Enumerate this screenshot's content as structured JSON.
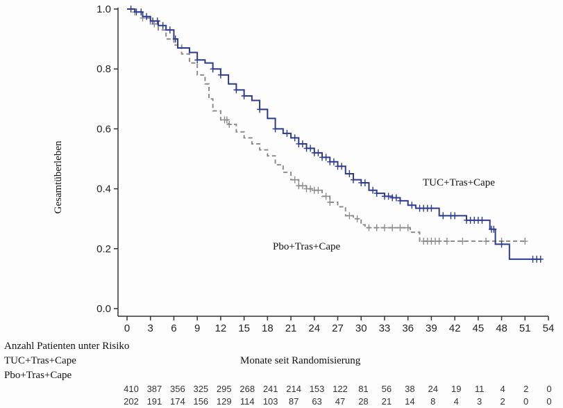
{
  "chart_data": {
    "type": "line",
    "title": "",
    "xlabel": "Monate seit Randomisierung",
    "ylabel": "Gesamtüberleben",
    "xlim": [
      0,
      54
    ],
    "ylim": [
      0,
      1.0
    ],
    "x_ticks": [
      0,
      3,
      6,
      9,
      12,
      15,
      18,
      21,
      24,
      27,
      30,
      33,
      36,
      39,
      42,
      45,
      48,
      51,
      54
    ],
    "y_ticks": [
      0.0,
      0.2,
      0.4,
      0.6,
      0.8,
      1.0
    ],
    "y_tick_labels": [
      "0.0",
      "0.2",
      "0.4",
      "0.6",
      "0.8",
      "1.0"
    ],
    "grid": false,
    "series": [
      {
        "name": "TUC+Tras+Cape",
        "color": "#2b3a8f",
        "style": "solid",
        "label_text": "TUC+Tras+Cape",
        "points": [
          [
            0,
            1.0
          ],
          [
            1,
            0.99
          ],
          [
            2,
            0.975
          ],
          [
            3,
            0.96
          ],
          [
            4,
            0.945
          ],
          [
            5,
            0.93
          ],
          [
            6,
            0.9
          ],
          [
            6.5,
            0.87
          ],
          [
            8,
            0.855
          ],
          [
            9,
            0.83
          ],
          [
            10,
            0.82
          ],
          [
            11,
            0.8
          ],
          [
            12,
            0.78
          ],
          [
            13,
            0.75
          ],
          [
            14,
            0.73
          ],
          [
            15,
            0.71
          ],
          [
            16,
            0.695
          ],
          [
            17,
            0.665
          ],
          [
            18,
            0.635
          ],
          [
            19,
            0.6
          ],
          [
            20,
            0.585
          ],
          [
            21,
            0.57
          ],
          [
            22,
            0.55
          ],
          [
            23,
            0.535
          ],
          [
            24,
            0.52
          ],
          [
            25,
            0.505
          ],
          [
            26,
            0.49
          ],
          [
            27,
            0.475
          ],
          [
            28,
            0.45
          ],
          [
            29,
            0.43
          ],
          [
            30,
            0.42
          ],
          [
            31,
            0.395
          ],
          [
            32,
            0.385
          ],
          [
            33,
            0.375
          ],
          [
            34,
            0.37
          ],
          [
            35,
            0.36
          ],
          [
            36,
            0.345
          ],
          [
            37,
            0.335
          ],
          [
            39,
            0.335
          ],
          [
            40,
            0.31
          ],
          [
            43,
            0.31
          ],
          [
            43.5,
            0.295
          ],
          [
            46.3,
            0.295
          ],
          [
            46.5,
            0.265
          ],
          [
            47,
            0.265
          ],
          [
            47.2,
            0.215
          ],
          [
            48.7,
            0.215
          ],
          [
            49,
            0.165
          ],
          [
            53,
            0.165
          ]
        ],
        "censor_x": [
          0.5,
          1.2,
          1.8,
          2.5,
          3.3,
          3.9,
          4.6,
          5.5,
          6.2,
          9,
          11,
          12,
          14,
          15,
          17,
          19,
          20.5,
          21.5,
          22,
          22.5,
          23,
          23.5,
          24,
          24.5,
          25,
          25.5,
          26,
          26.5,
          27,
          27.5,
          28.5,
          29,
          30,
          30.5,
          31.5,
          32,
          33,
          33.5,
          34,
          34.5,
          35,
          36.5,
          37.5,
          38,
          38.5,
          39,
          40.5,
          41.5,
          42,
          43.5,
          44,
          44.5,
          45,
          45.5,
          46.7,
          47,
          48,
          52,
          52.5,
          53
        ]
      },
      {
        "name": "Pbo+Tras+Cape",
        "color": "#8c8c8c",
        "style": "dashed",
        "label_text": "Pbo+Tras+Cape",
        "points": [
          [
            0,
            1.0
          ],
          [
            1,
            0.99
          ],
          [
            2,
            0.97
          ],
          [
            3,
            0.95
          ],
          [
            4,
            0.93
          ],
          [
            5,
            0.9
          ],
          [
            6,
            0.88
          ],
          [
            7,
            0.85
          ],
          [
            8,
            0.82
          ],
          [
            9,
            0.78
          ],
          [
            10,
            0.75
          ],
          [
            10.5,
            0.7
          ],
          [
            11,
            0.66
          ],
          [
            12,
            0.63
          ],
          [
            13,
            0.615
          ],
          [
            14,
            0.59
          ],
          [
            15,
            0.57
          ],
          [
            16,
            0.55
          ],
          [
            17,
            0.53
          ],
          [
            18,
            0.51
          ],
          [
            19,
            0.48
          ],
          [
            20,
            0.455
          ],
          [
            21,
            0.43
          ],
          [
            22,
            0.41
          ],
          [
            23,
            0.4
          ],
          [
            24,
            0.395
          ],
          [
            25,
            0.375
          ],
          [
            26,
            0.355
          ],
          [
            27,
            0.34
          ],
          [
            28,
            0.31
          ],
          [
            29,
            0.3
          ],
          [
            30,
            0.28
          ],
          [
            30.5,
            0.27
          ],
          [
            36,
            0.27
          ],
          [
            36.3,
            0.255
          ],
          [
            37.3,
            0.255
          ],
          [
            37.5,
            0.225
          ],
          [
            51,
            0.225
          ]
        ],
        "censor_x": [
          1,
          2,
          3.5,
          12.5,
          12.8,
          13.1,
          21.5,
          22,
          22.5,
          23,
          23.5,
          24,
          24.5,
          25.5,
          26,
          28.5,
          29.5,
          31,
          32,
          33,
          34,
          35,
          36,
          38,
          38.5,
          39,
          39.5,
          40,
          41,
          43,
          46,
          48,
          51
        ]
      }
    ],
    "risk_table": {
      "title": "Anzahl Patienten unter Risiko",
      "rows": [
        {
          "label": "TUC+Tras+Cape",
          "values": [
            410,
            387,
            356,
            325,
            295,
            268,
            241,
            214,
            153,
            122,
            81,
            56,
            38,
            24,
            19,
            11,
            4,
            2,
            0
          ]
        },
        {
          "label": "Pbo+Tras+Cape",
          "values": [
            202,
            191,
            174,
            156,
            129,
            114,
            103,
            87,
            63,
            47,
            28,
            21,
            14,
            8,
            4,
            3,
            2,
            0,
            0
          ]
        }
      ]
    }
  }
}
